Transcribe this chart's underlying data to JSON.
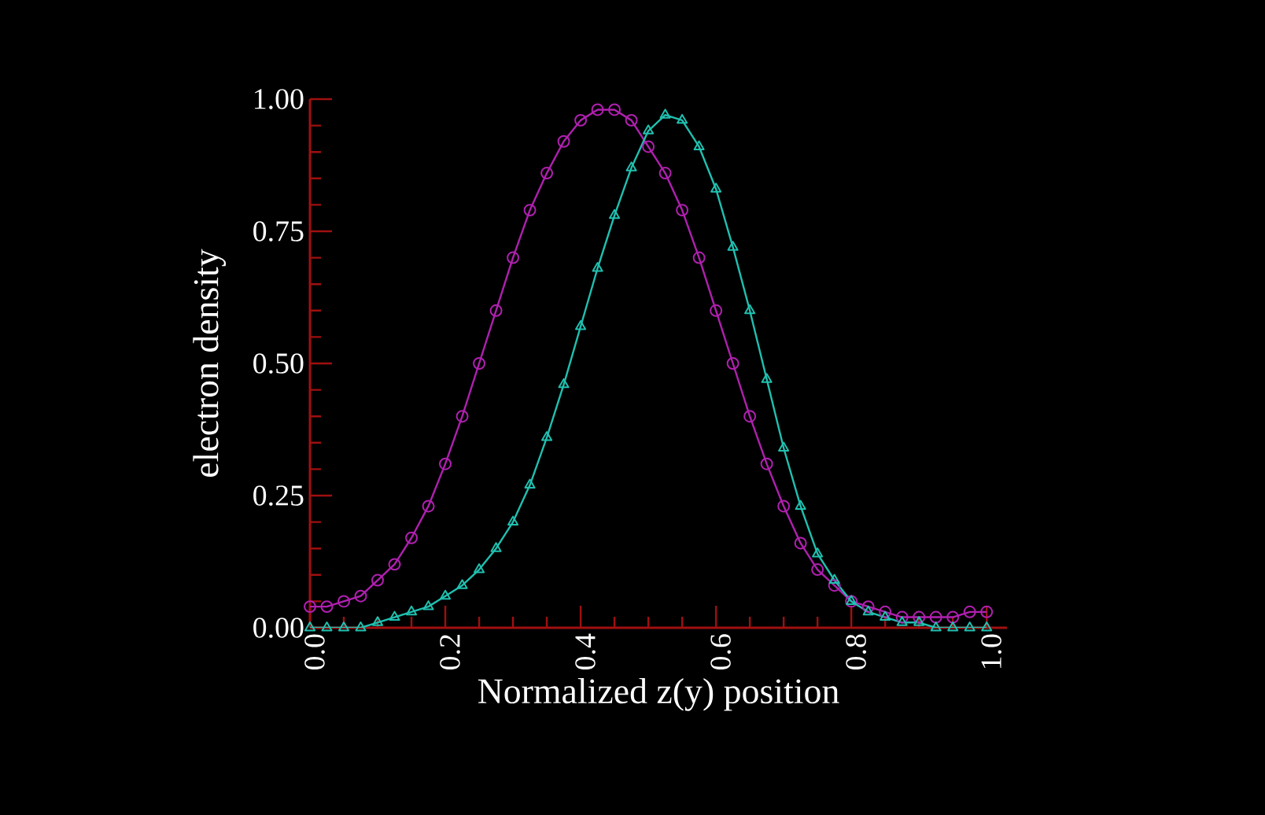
{
  "chart_data": {
    "type": "line",
    "xlabel": "Normalized z(y) position",
    "ylabel": "electron density",
    "x": [
      0,
      0.025,
      0.05,
      0.075,
      0.1,
      0.125,
      0.15,
      0.175,
      0.2,
      0.225,
      0.25,
      0.275,
      0.3,
      0.325,
      0.35,
      0.375,
      0.4,
      0.425,
      0.45,
      0.475,
      0.5,
      0.525,
      0.55,
      0.575,
      0.6,
      0.625,
      0.65,
      0.675,
      0.7,
      0.725,
      0.75,
      0.775,
      0.8,
      0.825,
      0.85,
      0.875,
      0.9,
      0.925,
      0.95,
      0.975,
      1.0
    ],
    "series": [
      {
        "color": "#b020b0",
        "marker": "circle",
        "values": [
          0.04,
          0.04,
          0.05,
          0.06,
          0.09,
          0.12,
          0.17,
          0.23,
          0.31,
          0.4,
          0.5,
          0.6,
          0.7,
          0.79,
          0.86,
          0.92,
          0.96,
          0.98,
          0.98,
          0.96,
          0.91,
          0.86,
          0.79,
          0.7,
          0.6,
          0.5,
          0.4,
          0.31,
          0.23,
          0.16,
          0.11,
          0.08,
          0.05,
          0.04,
          0.03,
          0.02,
          0.02,
          0.02,
          0.02,
          0.03,
          0.03
        ]
      },
      {
        "color": "#20c0b0",
        "marker": "triangle",
        "values": [
          0.0,
          0.0,
          0.0,
          0.0,
          0.01,
          0.02,
          0.03,
          0.04,
          0.06,
          0.08,
          0.11,
          0.15,
          0.2,
          0.27,
          0.36,
          0.46,
          0.57,
          0.68,
          0.78,
          0.87,
          0.94,
          0.97,
          0.96,
          0.91,
          0.83,
          0.72,
          0.6,
          0.47,
          0.34,
          0.23,
          0.14,
          0.09,
          0.05,
          0.03,
          0.02,
          0.01,
          0.01,
          0.0,
          0.0,
          0.0,
          0.0
        ]
      }
    ],
    "xlim": [
      0,
      1.03
    ],
    "ylim": [
      0,
      1
    ],
    "xticks": [
      {
        "value": 0,
        "label": "0.0"
      },
      {
        "value": 0.2,
        "label": "0.2"
      },
      {
        "value": 0.4,
        "label": "0.4"
      },
      {
        "value": 0.6,
        "label": "0.6"
      },
      {
        "value": 0.8,
        "label": "0.8"
      },
      {
        "value": 1.0,
        "label": "1.0"
      }
    ],
    "yticks": [
      {
        "value": 0,
        "label": "0.00"
      },
      {
        "value": 0.25,
        "label": "0.25"
      },
      {
        "value": 0.5,
        "label": "0.50"
      },
      {
        "value": 0.75,
        "label": "0.75"
      },
      {
        "value": 1.0,
        "label": "1.00"
      }
    ],
    "line_style": "solid"
  }
}
